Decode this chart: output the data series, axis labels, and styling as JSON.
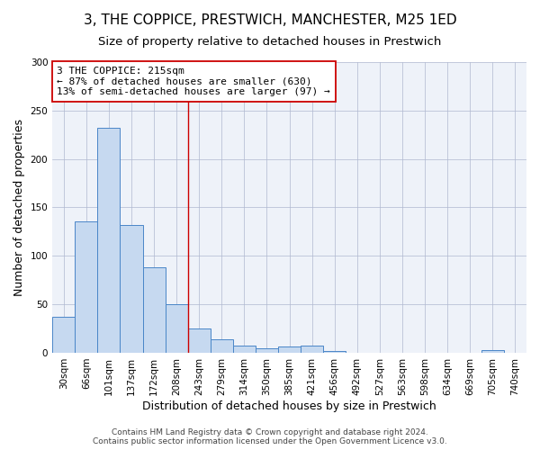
{
  "title": "3, THE COPPICE, PRESTWICH, MANCHESTER, M25 1ED",
  "subtitle": "Size of property relative to detached houses in Prestwich",
  "xlabel": "Distribution of detached houses by size in Prestwich",
  "ylabel": "Number of detached properties",
  "bar_labels": [
    "30sqm",
    "66sqm",
    "101sqm",
    "137sqm",
    "172sqm",
    "208sqm",
    "243sqm",
    "279sqm",
    "314sqm",
    "350sqm",
    "385sqm",
    "421sqm",
    "456sqm",
    "492sqm",
    "527sqm",
    "563sqm",
    "598sqm",
    "634sqm",
    "669sqm",
    "705sqm",
    "740sqm"
  ],
  "bar_values": [
    37,
    136,
    232,
    132,
    88,
    50,
    25,
    14,
    7,
    5,
    6,
    7,
    2,
    0,
    0,
    0,
    0,
    0,
    0,
    3,
    0
  ],
  "bar_color": "#c6d9f0",
  "bar_edge_color": "#4a86c8",
  "vline_x": 5.5,
  "vline_color": "#cc0000",
  "annotation_text": "3 THE COPPICE: 215sqm\n← 87% of detached houses are smaller (630)\n13% of semi-detached houses are larger (97) →",
  "annotation_box_color": "#ffffff",
  "annotation_box_edge_color": "#cc0000",
  "ylim": [
    0,
    300
  ],
  "yticks": [
    0,
    50,
    100,
    150,
    200,
    250,
    300
  ],
  "footer_line1": "Contains HM Land Registry data © Crown copyright and database right 2024.",
  "footer_line2": "Contains public sector information licensed under the Open Government Licence v3.0.",
  "background_color": "#eef2f9",
  "title_fontsize": 11,
  "subtitle_fontsize": 9.5,
  "tick_fontsize": 7.5,
  "label_fontsize": 9,
  "annotation_fontsize": 8,
  "footer_fontsize": 6.5
}
